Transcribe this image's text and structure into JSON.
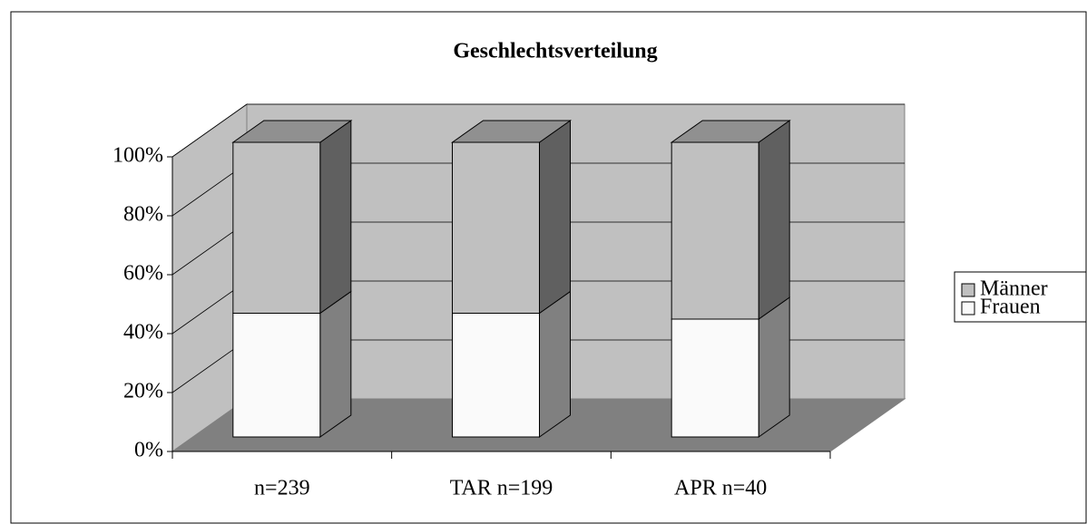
{
  "chart_data": {
    "type": "bar",
    "stacked": true,
    "three_d": true,
    "title": "Geschlechtsverteilung",
    "categories": [
      "n=239",
      "TAR n=199",
      "APR n=40"
    ],
    "series": [
      {
        "name": "Frauen",
        "color": "#fafafa",
        "values": [
          42,
          42,
          40
        ]
      },
      {
        "name": "Männer",
        "color": "#c0c0c0",
        "values": [
          58,
          58,
          60
        ]
      }
    ],
    "ylim": [
      0,
      100
    ],
    "yticks": [
      {
        "value": 0,
        "label": "0%"
      },
      {
        "value": 20,
        "label": "20%"
      },
      {
        "value": 40,
        "label": "40%"
      },
      {
        "value": 60,
        "label": "60%"
      },
      {
        "value": 80,
        "label": "80%"
      },
      {
        "value": 100,
        "label": "100%"
      }
    ],
    "grid": true,
    "legend": "right"
  }
}
